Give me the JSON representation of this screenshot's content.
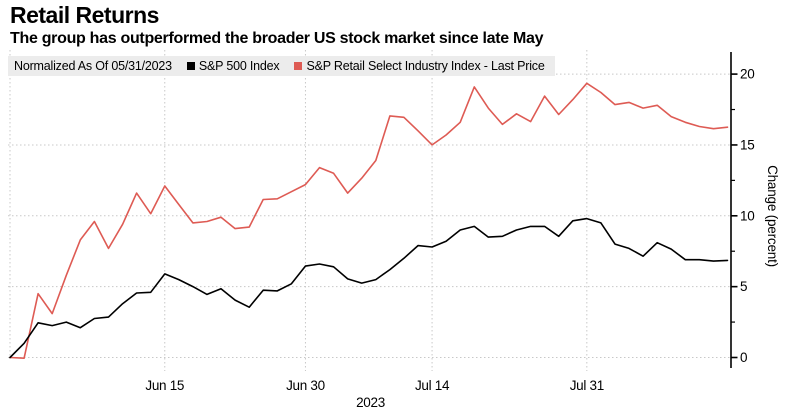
{
  "header": {
    "title": "Retail Returns",
    "subtitle": "The group has outperformed the broader US stock market since late May"
  },
  "legend": {
    "note": "Normalized As Of 05/31/2023",
    "items": [
      {
        "label": "S&P 500 Index",
        "color": "#000000"
      },
      {
        "label": "S&P Retail Select Industry Index - Last Price",
        "color": "#de5b54"
      }
    ]
  },
  "chart_data": {
    "type": "line",
    "title": "Retail Returns",
    "subtitle": "The group has outperformed the broader US stock market since late May",
    "normalized_as_of": "05/31/2023",
    "ylabel": "Change (percent)",
    "y_ticks": [
      0,
      5,
      10,
      15,
      20
    ],
    "y_minor_ticks": [
      2.5,
      7.5,
      12.5,
      17.5
    ],
    "ylim": [
      -0.8,
      21.2
    ],
    "grid": "dotted",
    "legend_position": "top",
    "x_year_label": "2023",
    "x_tick_labels": [
      {
        "label": "Jun 15",
        "index": 11
      },
      {
        "label": "Jun 30",
        "index": 21
      },
      {
        "label": "Jul 14",
        "index": 30
      },
      {
        "label": "Jul 31",
        "index": 41
      }
    ],
    "x": [
      "05/31",
      "06/01",
      "06/02",
      "06/05",
      "06/06",
      "06/07",
      "06/08",
      "06/09",
      "06/12",
      "06/13",
      "06/14",
      "06/15",
      "06/16",
      "06/20",
      "06/21",
      "06/22",
      "06/23",
      "06/26",
      "06/27",
      "06/28",
      "06/29",
      "06/30",
      "07/03",
      "07/05",
      "07/06",
      "07/07",
      "07/10",
      "07/11",
      "07/12",
      "07/13",
      "07/14",
      "07/17",
      "07/18",
      "07/19",
      "07/20",
      "07/21",
      "07/24",
      "07/25",
      "07/26",
      "07/27",
      "07/28",
      "07/31",
      "08/01",
      "08/02",
      "08/03",
      "08/04",
      "08/07",
      "08/08",
      "08/09",
      "08/10",
      "08/11",
      "08/14"
    ],
    "series": [
      {
        "name": "S&P 500 Index",
        "color": "#000000",
        "values": [
          0.0,
          1.0,
          2.45,
          2.25,
          2.5,
          2.1,
          2.75,
          2.85,
          3.8,
          4.55,
          4.6,
          5.9,
          5.5,
          5.0,
          4.45,
          4.85,
          4.05,
          3.55,
          4.75,
          4.7,
          5.2,
          6.45,
          6.6,
          6.4,
          5.55,
          5.25,
          5.5,
          6.2,
          7.0,
          7.9,
          7.8,
          8.2,
          9.0,
          9.25,
          8.5,
          8.55,
          9.0,
          9.25,
          9.25,
          8.55,
          9.65,
          9.8,
          9.5,
          8.0,
          7.7,
          7.15,
          8.1,
          7.65,
          6.9,
          6.9,
          6.8,
          6.85
        ]
      },
      {
        "name": "S&P Retail Select Industry Index - Last Price",
        "color": "#de5b54",
        "values": [
          0.0,
          -0.05,
          4.5,
          3.1,
          5.8,
          8.3,
          9.6,
          7.7,
          9.4,
          11.6,
          10.15,
          12.1,
          10.8,
          9.5,
          9.6,
          9.9,
          9.1,
          9.2,
          11.15,
          11.2,
          11.7,
          12.2,
          13.4,
          13.0,
          11.6,
          12.65,
          13.9,
          17.05,
          16.95,
          16.0,
          15.0,
          15.7,
          16.6,
          19.1,
          17.6,
          16.45,
          17.2,
          16.65,
          18.45,
          17.15,
          18.2,
          19.35,
          18.7,
          17.85,
          18.0,
          17.6,
          17.8,
          17.0,
          16.6,
          16.3,
          16.15,
          16.25
        ]
      }
    ]
  },
  "colors": {
    "grid": "#c8c8c8",
    "axis": "#000000",
    "legend_bg": "#ececec"
  }
}
